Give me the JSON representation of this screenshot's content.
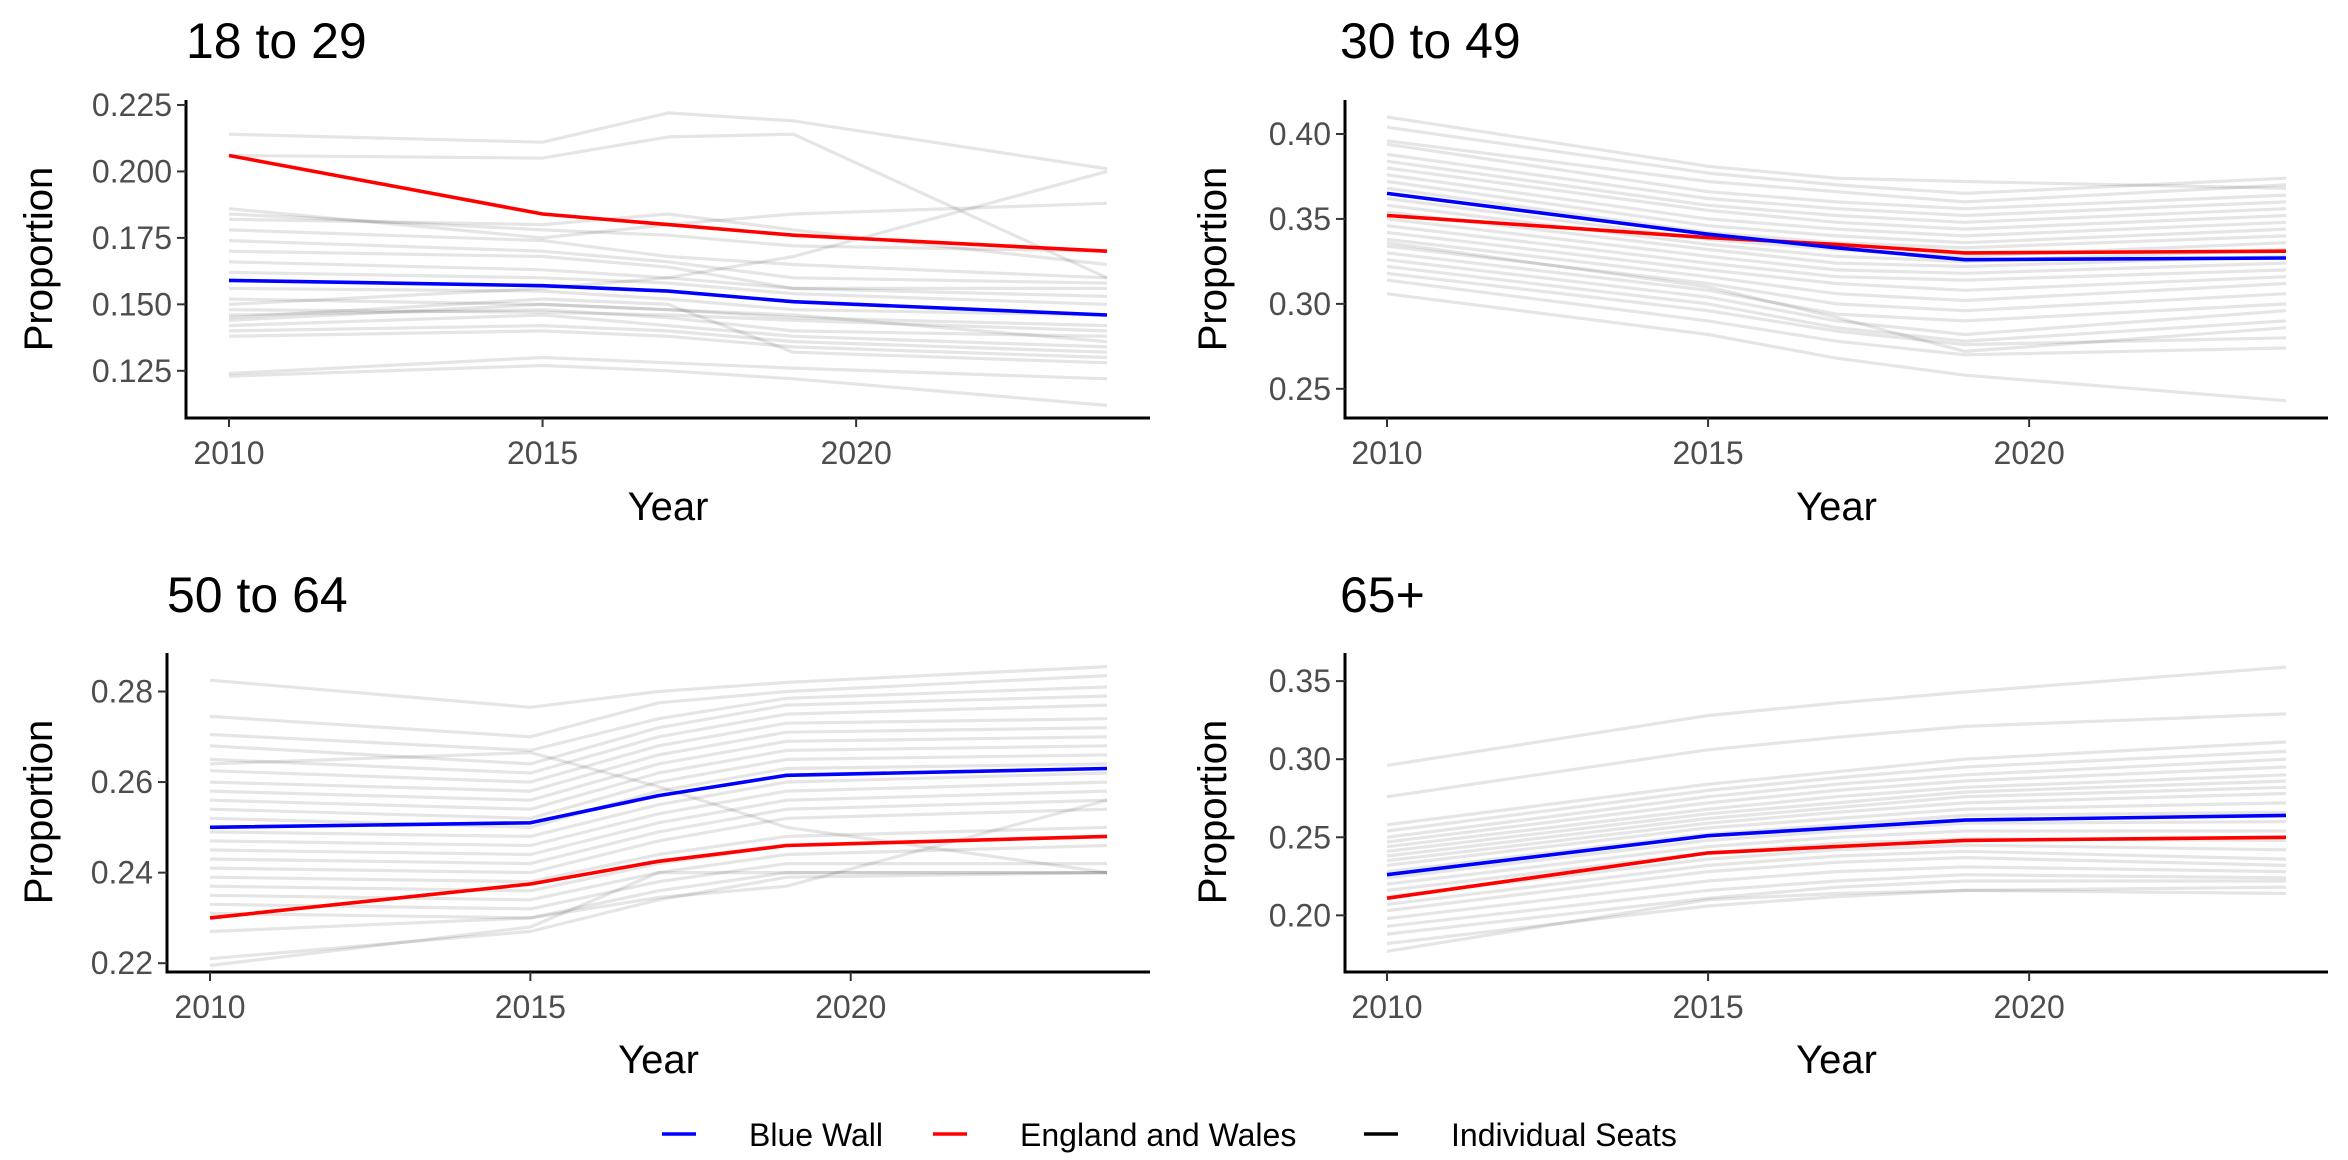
{
  "colors": {
    "blue_wall": "#0000ff",
    "england_wales": "#ff0000",
    "individual_seats": "#000000",
    "axis": "#000000",
    "tick_text": "#4d4d4d"
  },
  "legend": {
    "items": [
      {
        "label": "Blue Wall",
        "color": "#0000ff"
      },
      {
        "label": "England and Wales",
        "color": "#ff0000"
      },
      {
        "label": "Individual Seats",
        "color": "#000000"
      }
    ],
    "position": "bottom"
  },
  "chart_data": [
    {
      "type": "line",
      "title": "18 to 29",
      "xlabel": "Year",
      "ylabel": "Proportion",
      "xlim": [
        2009.3,
        2024.7
      ],
      "ylim": [
        0.108,
        0.228
      ],
      "xticks": [
        2010,
        2015,
        2020
      ],
      "yticks": [
        0.125,
        0.15,
        0.175,
        0.2,
        0.225
      ],
      "ytick_labels": [
        "0.125",
        "0.150",
        "0.175",
        "0.200",
        "0.225"
      ],
      "x": [
        2010,
        2015,
        2017,
        2019,
        2024
      ],
      "series": [
        {
          "name": "Blue Wall",
          "values": [
            0.159,
            0.157,
            0.155,
            0.151,
            0.146
          ]
        },
        {
          "name": "England and Wales",
          "values": [
            0.206,
            0.184,
            0.18,
            0.176,
            0.17
          ]
        },
        {
          "name": "Individual Seats",
          "values": [
            [
              0.214,
              0.211,
              0.222,
              0.219,
              0.201
            ],
            [
              0.206,
              0.205,
              0.213,
              0.214,
              0.16
            ],
            [
              0.186,
              0.175,
              0.18,
              0.184,
              0.188
            ],
            [
              0.184,
              0.178,
              0.176,
              0.172,
              0.17
            ],
            [
              0.182,
              0.18,
              0.184,
              0.178,
              0.165
            ],
            [
              0.178,
              0.174,
              0.168,
              0.165,
              0.16
            ],
            [
              0.174,
              0.17,
              0.166,
              0.16,
              0.158
            ],
            [
              0.17,
              0.168,
              0.164,
              0.156,
              0.156
            ],
            [
              0.166,
              0.163,
              0.16,
              0.156,
              0.153
            ],
            [
              0.162,
              0.16,
              0.158,
              0.154,
              0.15
            ],
            [
              0.156,
              0.155,
              0.152,
              0.148,
              0.146
            ],
            [
              0.152,
              0.15,
              0.148,
              0.145,
              0.142
            ],
            [
              0.148,
              0.147,
              0.146,
              0.144,
              0.14
            ],
            [
              0.146,
              0.148,
              0.145,
              0.14,
              0.138
            ],
            [
              0.144,
              0.15,
              0.148,
              0.146,
              0.136
            ],
            [
              0.142,
              0.146,
              0.142,
              0.138,
              0.134
            ],
            [
              0.14,
              0.142,
              0.14,
              0.136,
              0.132
            ],
            [
              0.138,
              0.14,
              0.138,
              0.134,
              0.13
            ],
            [
              0.124,
              0.13,
              0.128,
              0.126,
              0.122
            ],
            [
              0.123,
              0.127,
              0.125,
              0.122,
              0.112
            ],
            [
              0.15,
              0.156,
              0.16,
              0.168,
              0.2
            ],
            [
              0.145,
              0.152,
              0.15,
              0.132,
              0.128
            ]
          ]
        }
      ]
    },
    {
      "type": "line",
      "title": "30 to 49",
      "xlabel": "Year",
      "ylabel": "Proportion",
      "xlim": [
        2009.3,
        2024.7
      ],
      "ylim": [
        0.234,
        0.42
      ],
      "xticks": [
        2010,
        2015,
        2020
      ],
      "yticks": [
        0.25,
        0.3,
        0.35,
        0.4
      ],
      "ytick_labels": [
        "0.25",
        "0.30",
        "0.35",
        "0.40"
      ],
      "x": [
        2010,
        2015,
        2017,
        2019,
        2024
      ],
      "series": [
        {
          "name": "Blue Wall",
          "values": [
            0.365,
            0.341,
            0.333,
            0.326,
            0.327
          ]
        },
        {
          "name": "England and Wales",
          "values": [
            0.352,
            0.339,
            0.335,
            0.33,
            0.331
          ]
        },
        {
          "name": "Individual Seats",
          "values": [
            [
              0.41,
              0.381,
              0.374,
              0.372,
              0.368
            ],
            [
              0.404,
              0.377,
              0.37,
              0.365,
              0.374
            ],
            [
              0.396,
              0.372,
              0.366,
              0.36,
              0.37
            ],
            [
              0.394,
              0.366,
              0.36,
              0.356,
              0.364
            ],
            [
              0.388,
              0.362,
              0.356,
              0.352,
              0.36
            ],
            [
              0.384,
              0.358,
              0.352,
              0.348,
              0.356
            ],
            [
              0.38,
              0.355,
              0.348,
              0.344,
              0.352
            ],
            [
              0.376,
              0.35,
              0.344,
              0.34,
              0.348
            ],
            [
              0.372,
              0.346,
              0.34,
              0.336,
              0.344
            ],
            [
              0.368,
              0.342,
              0.336,
              0.333,
              0.34
            ],
            [
              0.362,
              0.338,
              0.332,
              0.328,
              0.336
            ],
            [
              0.358,
              0.335,
              0.328,
              0.325,
              0.332
            ],
            [
              0.354,
              0.332,
              0.324,
              0.322,
              0.328
            ],
            [
              0.35,
              0.328,
              0.32,
              0.318,
              0.324
            ],
            [
              0.346,
              0.324,
              0.316,
              0.314,
              0.32
            ],
            [
              0.342,
              0.32,
              0.312,
              0.308,
              0.316
            ],
            [
              0.338,
              0.316,
              0.306,
              0.302,
              0.312
            ],
            [
              0.334,
              0.312,
              0.3,
              0.296,
              0.306
            ],
            [
              0.33,
              0.308,
              0.294,
              0.29,
              0.3
            ],
            [
              0.326,
              0.304,
              0.29,
              0.282,
              0.296
            ],
            [
              0.322,
              0.3,
              0.286,
              0.278,
              0.29
            ],
            [
              0.336,
              0.31,
              0.292,
              0.272,
              0.286
            ],
            [
              0.318,
              0.296,
              0.284,
              0.276,
              0.28
            ],
            [
              0.314,
              0.29,
              0.278,
              0.27,
              0.274
            ],
            [
              0.306,
              0.282,
              0.268,
              0.258,
              0.243
            ]
          ]
        }
      ]
    },
    {
      "type": "line",
      "title": "50 to 64",
      "xlabel": "Year",
      "ylabel": "Proportion",
      "xlim": [
        2009.3,
        2024.7
      ],
      "ylim": [
        0.2185,
        0.2885
      ],
      "xticks": [
        2010,
        2015,
        2020
      ],
      "yticks": [
        0.22,
        0.24,
        0.26,
        0.28
      ],
      "ytick_labels": [
        "0.22",
        "0.24",
        "0.26",
        "0.28"
      ],
      "x": [
        2010,
        2015,
        2017,
        2019,
        2024
      ],
      "series": [
        {
          "name": "Blue Wall",
          "values": [
            0.25,
            0.251,
            0.257,
            0.2615,
            0.263
          ]
        },
        {
          "name": "England and Wales",
          "values": [
            0.23,
            0.2375,
            0.2425,
            0.246,
            0.248
          ]
        },
        {
          "name": "Individual Seats",
          "values": [
            [
              0.2825,
              0.2765,
              0.28,
              0.282,
              0.2855
            ],
            [
              0.2745,
              0.27,
              0.2775,
              0.28,
              0.2835
            ],
            [
              0.2705,
              0.267,
              0.274,
              0.2785,
              0.281
            ],
            [
              0.268,
              0.264,
              0.272,
              0.277,
              0.279
            ],
            [
              0.265,
              0.262,
              0.27,
              0.275,
              0.277
            ],
            [
              0.2625,
              0.26,
              0.268,
              0.273,
              0.274
            ],
            [
              0.26,
              0.258,
              0.266,
              0.271,
              0.272
            ],
            [
              0.258,
              0.256,
              0.264,
              0.269,
              0.27
            ],
            [
              0.256,
              0.254,
              0.262,
              0.267,
              0.268
            ],
            [
              0.254,
              0.252,
              0.26,
              0.265,
              0.266
            ],
            [
              0.252,
              0.25,
              0.258,
              0.263,
              0.264
            ],
            [
              0.249,
              0.248,
              0.255,
              0.26,
              0.262
            ],
            [
              0.247,
              0.246,
              0.253,
              0.258,
              0.26
            ],
            [
              0.245,
              0.244,
              0.251,
              0.256,
              0.258
            ],
            [
              0.243,
              0.242,
              0.249,
              0.254,
              0.256
            ],
            [
              0.241,
              0.24,
              0.247,
              0.252,
              0.254
            ],
            [
              0.239,
              0.238,
              0.244,
              0.248,
              0.25
            ],
            [
              0.237,
              0.236,
              0.242,
              0.246,
              0.248
            ],
            [
              0.235,
              0.234,
              0.24,
              0.244,
              0.246
            ],
            [
              0.233,
              0.232,
              0.238,
              0.242,
              0.242
            ],
            [
              0.231,
              0.23,
              0.236,
              0.24,
              0.24
            ],
            [
              0.227,
              0.23,
              0.2345,
              0.237,
              0.256
            ],
            [
              0.221,
              0.227,
              0.234,
              0.239,
              0.24
            ],
            [
              0.2195,
              0.228,
              0.24,
              0.24,
              0.24
            ],
            [
              0.264,
              0.2665,
              0.259,
              0.25,
              0.24
            ]
          ]
        }
      ]
    },
    {
      "type": "line",
      "title": "65+",
      "xlabel": "Year",
      "ylabel": "Proportion",
      "xlim": [
        2009.3,
        2024.7
      ],
      "ylim": [
        0.165,
        0.368
      ],
      "xticks": [
        2010,
        2015,
        2020
      ],
      "yticks": [
        0.2,
        0.25,
        0.3,
        0.35
      ],
      "ytick_labels": [
        "0.20",
        "0.25",
        "0.30",
        "0.35"
      ],
      "x": [
        2010,
        2015,
        2017,
        2019,
        2024
      ],
      "series": [
        {
          "name": "Blue Wall",
          "values": [
            0.226,
            0.251,
            0.256,
            0.261,
            0.264
          ]
        },
        {
          "name": "England and Wales",
          "values": [
            0.211,
            0.24,
            0.244,
            0.248,
            0.25
          ]
        },
        {
          "name": "Individual Seats",
          "values": [
            [
              0.296,
              0.328,
              0.336,
              0.343,
              0.359
            ],
            [
              0.276,
              0.306,
              0.314,
              0.321,
              0.329
            ],
            [
              0.258,
              0.284,
              0.292,
              0.3,
              0.311
            ],
            [
              0.254,
              0.28,
              0.288,
              0.295,
              0.305
            ],
            [
              0.25,
              0.276,
              0.284,
              0.29,
              0.3
            ],
            [
              0.247,
              0.272,
              0.28,
              0.286,
              0.295
            ],
            [
              0.244,
              0.268,
              0.276,
              0.282,
              0.29
            ],
            [
              0.241,
              0.265,
              0.272,
              0.279,
              0.286
            ],
            [
              0.238,
              0.262,
              0.269,
              0.276,
              0.282
            ],
            [
              0.235,
              0.259,
              0.266,
              0.272,
              0.278
            ],
            [
              0.232,
              0.256,
              0.262,
              0.268,
              0.272
            ],
            [
              0.228,
              0.252,
              0.258,
              0.264,
              0.266
            ],
            [
              0.224,
              0.248,
              0.254,
              0.259,
              0.26
            ],
            [
              0.22,
              0.244,
              0.25,
              0.254,
              0.254
            ],
            [
              0.216,
              0.24,
              0.246,
              0.249,
              0.248
            ],
            [
              0.212,
              0.236,
              0.242,
              0.245,
              0.242
            ],
            [
              0.207,
              0.232,
              0.238,
              0.241,
              0.236
            ],
            [
              0.203,
              0.228,
              0.234,
              0.237,
              0.232
            ],
            [
              0.198,
              0.222,
              0.228,
              0.231,
              0.228
            ],
            [
              0.193,
              0.216,
              0.222,
              0.226,
              0.224
            ],
            [
              0.188,
              0.211,
              0.218,
              0.222,
              0.222
            ],
            [
              0.182,
              0.206,
              0.212,
              0.216,
              0.218
            ],
            [
              0.177,
              0.21,
              0.214,
              0.216,
              0.214
            ]
          ]
        }
      ]
    }
  ]
}
